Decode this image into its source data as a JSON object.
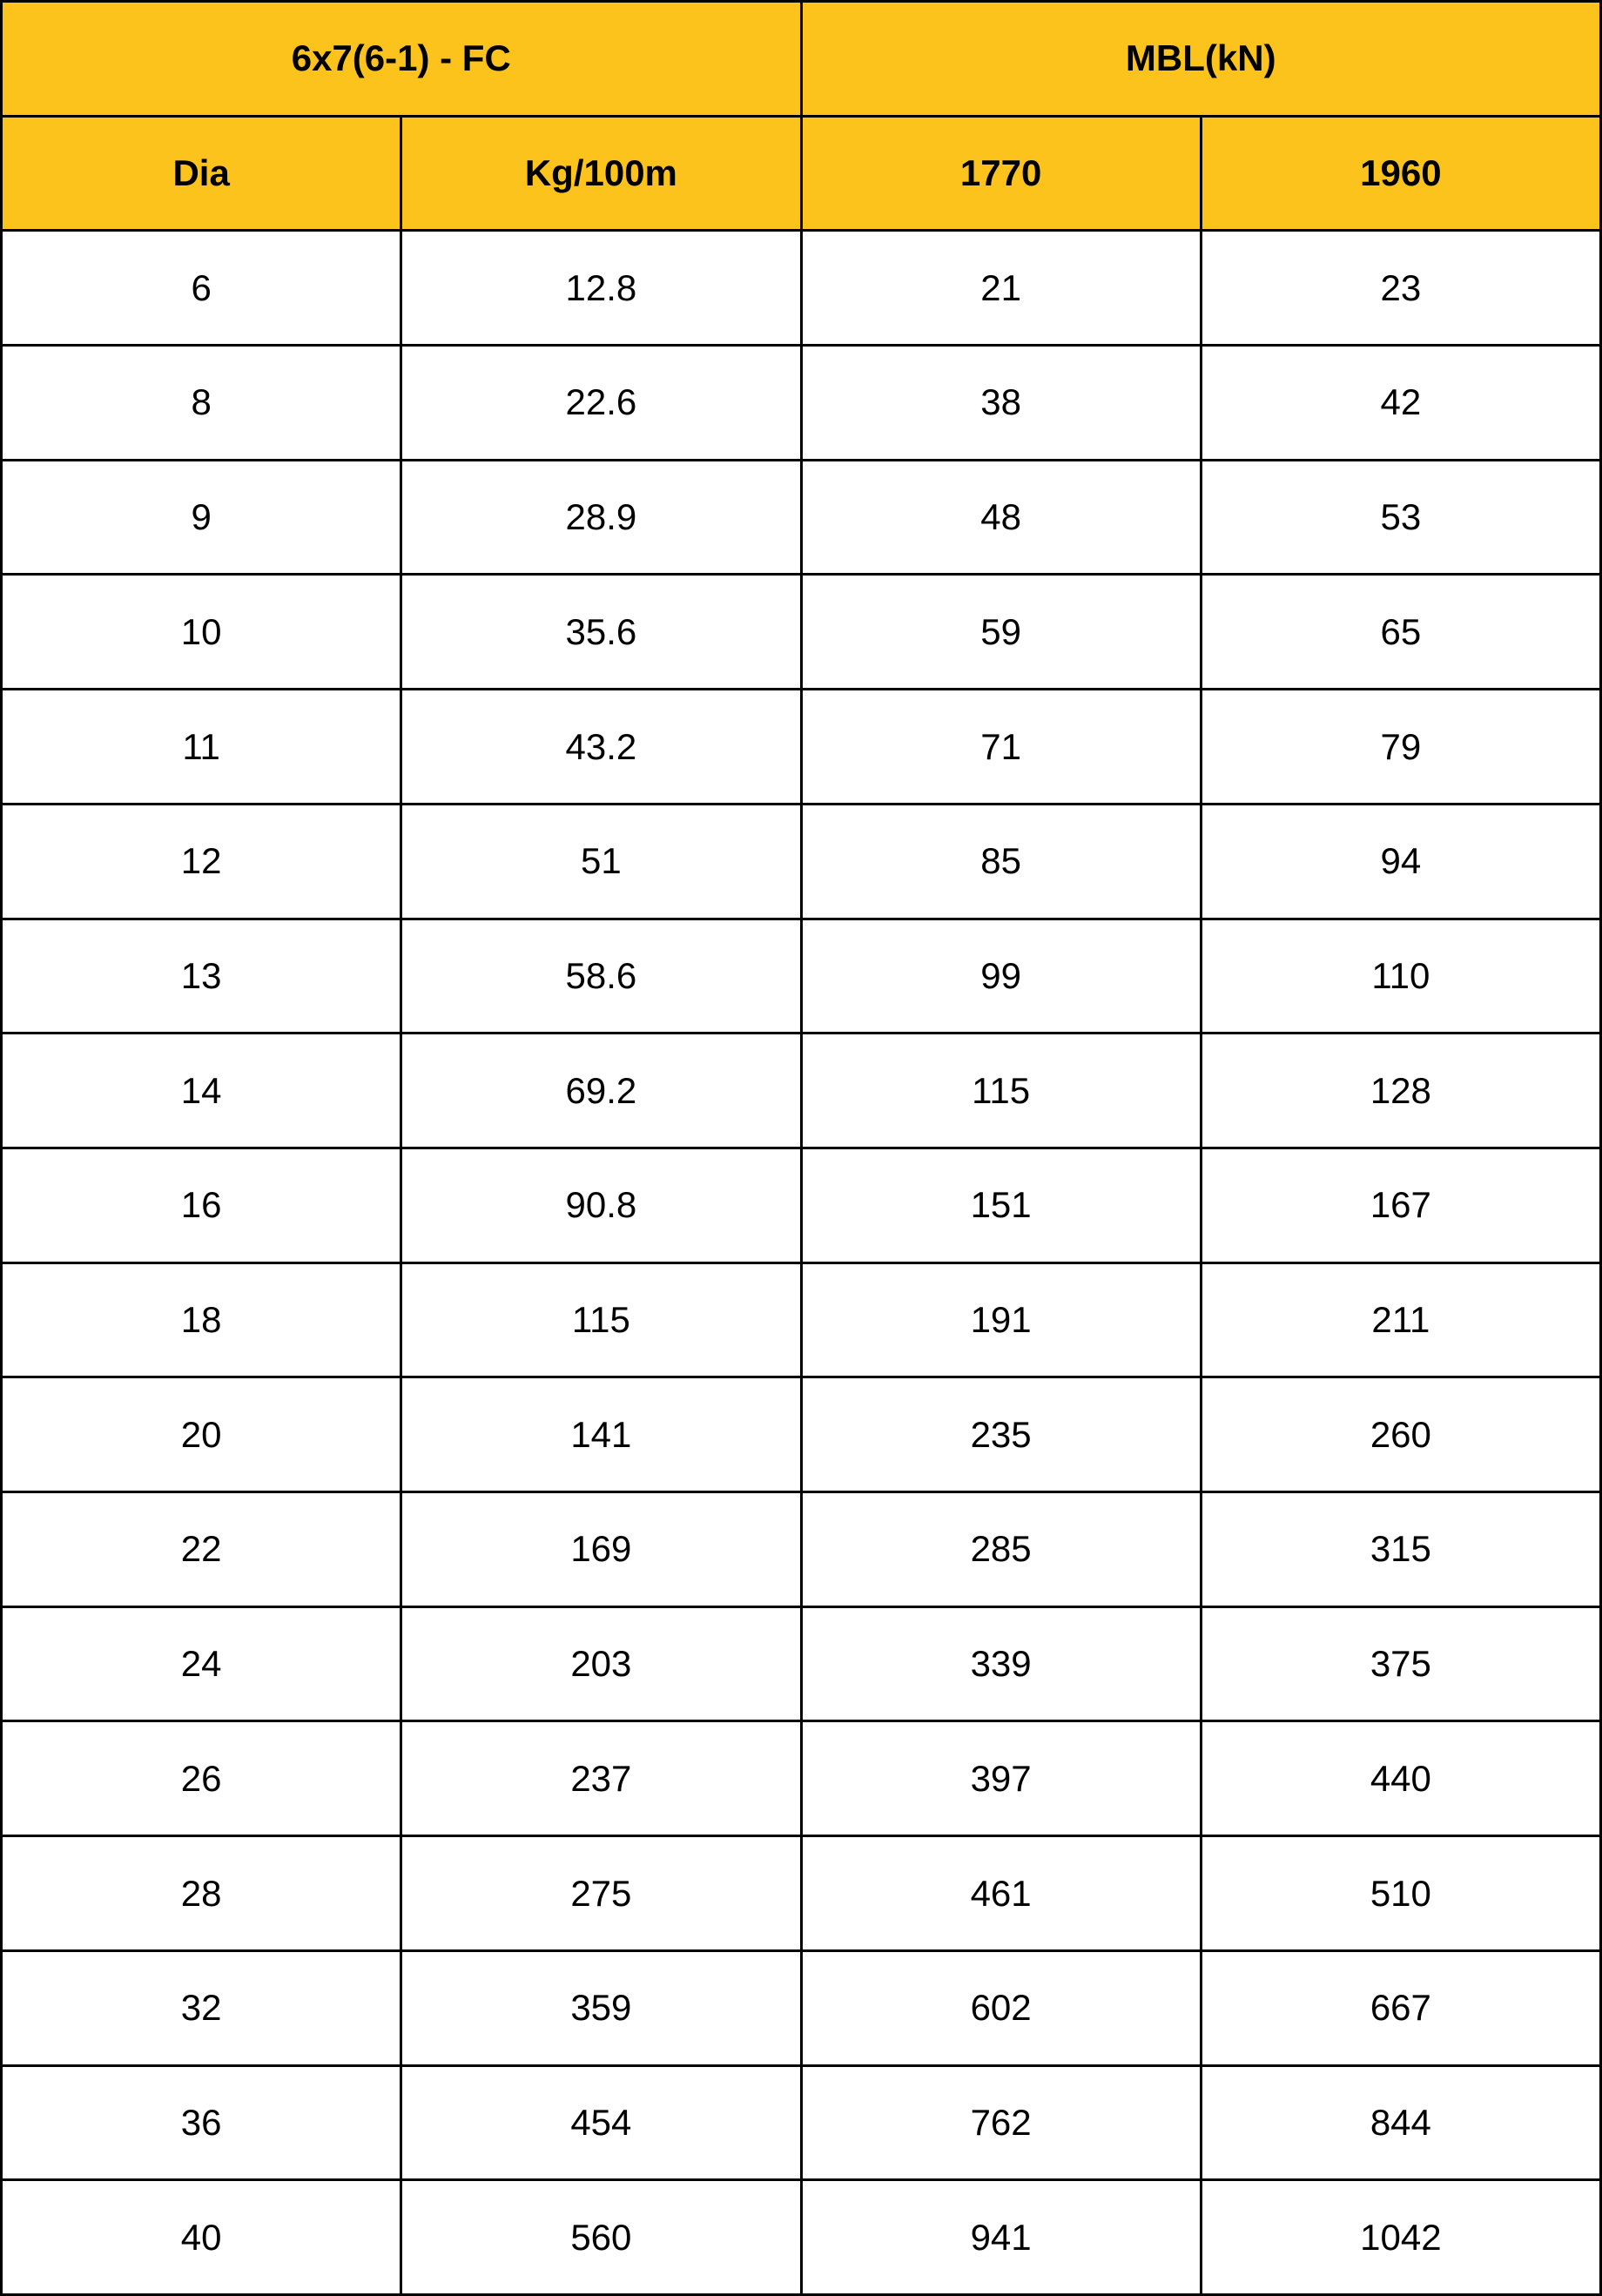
{
  "table": {
    "group_headers": [
      "6x7(6-1) - FC",
      "MBL(kN)"
    ],
    "headers": [
      "Dia",
      "Kg/100m",
      "1770",
      "1960"
    ],
    "rows": [
      [
        6,
        12.8,
        21,
        23
      ],
      [
        8,
        22.6,
        38,
        42
      ],
      [
        9,
        28.9,
        48,
        53
      ],
      [
        10,
        35.6,
        59,
        65
      ],
      [
        11,
        43.2,
        71,
        79
      ],
      [
        12,
        51,
        85,
        94
      ],
      [
        13,
        58.6,
        99,
        110
      ],
      [
        14,
        69.2,
        115,
        128
      ],
      [
        16,
        90.8,
        151,
        167
      ],
      [
        18,
        115,
        191,
        211
      ],
      [
        20,
        141,
        235,
        260
      ],
      [
        22,
        169,
        285,
        315
      ],
      [
        24,
        203,
        339,
        375
      ],
      [
        26,
        237,
        397,
        440
      ],
      [
        28,
        275,
        461,
        510
      ],
      [
        32,
        359,
        602,
        667
      ],
      [
        36,
        454,
        762,
        844
      ],
      [
        40,
        560,
        941,
        1042
      ]
    ]
  }
}
